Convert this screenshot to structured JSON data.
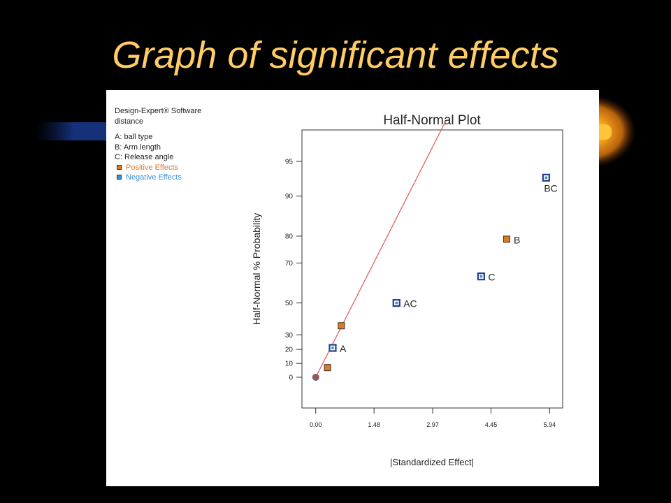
{
  "slide": {
    "title": "Graph of significant effects"
  },
  "info": {
    "software": "Design-Expert® Software",
    "response": "distance",
    "factors": [
      "A: ball type",
      "B: Arm length",
      "C: Release angle"
    ],
    "legend_positive": "Positive Effects",
    "legend_negative": "Negative Effects"
  },
  "colors": {
    "positive": "#e07a1f",
    "negative": "#3d8fd6",
    "line": "#e06060",
    "title": "#ffcc66"
  },
  "chart_data": {
    "type": "scatter",
    "title": "Half-Normal Plot",
    "xlabel": "|Standardized Effect|",
    "ylabel": "Half-Normal % Probability",
    "xlim": [
      -0.35,
      6.27
    ],
    "x_ticks": [
      "0.00",
      "1.48",
      "2.97",
      "4.45",
      "5.94"
    ],
    "y_ticks": [
      "0",
      "10",
      "20",
      "30",
      "50",
      "70",
      "80",
      "90",
      "95"
    ],
    "y_scale": "half-normal probability",
    "points": [
      {
        "label": "",
        "x": 0.0,
        "y": 0,
        "effect": "zero"
      },
      {
        "label": "",
        "x": 0.3,
        "y": 7,
        "effect": "positive"
      },
      {
        "label": "A",
        "x": 0.43,
        "y": 21,
        "effect": "negative"
      },
      {
        "label": "",
        "x": 0.65,
        "y": 36,
        "effect": "positive"
      },
      {
        "label": "AC",
        "x": 2.05,
        "y": 50,
        "effect": "negative"
      },
      {
        "label": "C",
        "x": 4.2,
        "y": 64,
        "effect": "negative"
      },
      {
        "label": "B",
        "x": 4.85,
        "y": 79,
        "effect": "positive"
      },
      {
        "label": "BC",
        "x": 5.85,
        "y": 93,
        "effect": "negative"
      }
    ],
    "reference_line": {
      "from": [
        0.0,
        0
      ],
      "to": [
        3.3,
        98
      ]
    },
    "grid": false
  }
}
